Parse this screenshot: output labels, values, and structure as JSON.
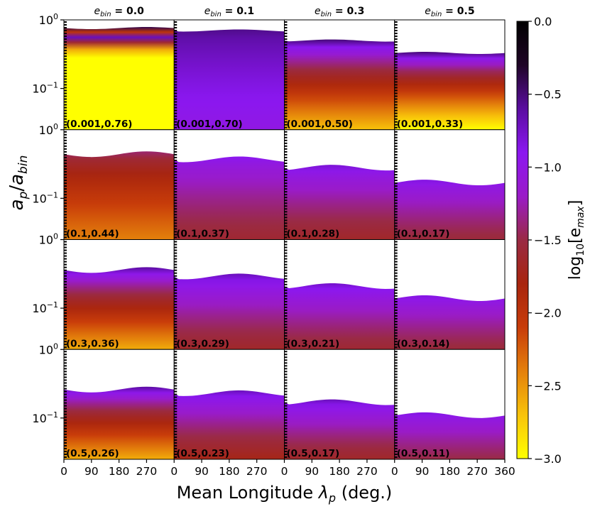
{
  "chart_data": {
    "type": "heatmap",
    "title": "",
    "xlabel": "Mean Longitude λ_p (deg.)",
    "ylabel": "a_p/a_bin",
    "colorbar_label": "log10[e_max]",
    "colorbar_range": [
      -3.0,
      0.0
    ],
    "colorbar_ticks": [
      "0.0",
      "−0.5",
      "−1.0",
      "−1.5",
      "−2.0",
      "−2.5",
      "−3.0"
    ],
    "colorbar_tick_values": [
      0.0,
      -0.5,
      -1.0,
      -1.5,
      -2.0,
      -2.5,
      -3.0
    ],
    "colormap": [
      "#ffff00",
      "#f8c30a",
      "#e4800b",
      "#c83c0a",
      "#a8250e",
      "#9a2a44",
      "#9a1bc8",
      "#8b17f0",
      "#5a0da0",
      "#1f0526",
      "#000000"
    ],
    "x_ticks": [
      "0",
      "90",
      "180",
      "270",
      "360"
    ],
    "x_tick_values": [
      0,
      90,
      180,
      270,
      360
    ],
    "xlim": [
      0,
      360
    ],
    "y_ticks": [
      "10^0",
      "10^-1"
    ],
    "y_tick_values": [
      1.0,
      0.1
    ],
    "ylim_log": [
      0.025,
      1.0
    ],
    "column_titles": [
      "e_bin = 0.0",
      "e_bin = 0.1",
      "e_bin = 0.3",
      "e_bin = 0.5"
    ],
    "column_values": [
      0.0,
      0.1,
      0.3,
      0.5
    ],
    "row_values": [
      0.001,
      0.1,
      0.3,
      0.5
    ],
    "panels": [
      [
        {
          "label": "(0.001,0.76)",
          "a_crit": 0.76,
          "mode": "pattern-yellow"
        },
        {
          "label": "(0.001,0.70)",
          "a_crit": 0.7,
          "mode": "gradient",
          "min": -1.0,
          "max": -0.55
        },
        {
          "label": "(0.001,0.50)",
          "a_crit": 0.5,
          "mode": "gradient",
          "min": -2.7,
          "max": -0.5
        },
        {
          "label": "(0.001,0.33)",
          "a_crit": 0.33,
          "mode": "gradient",
          "min": -3.0,
          "max": -0.5
        }
      ],
      [
        {
          "label": "(0.1,0.44)",
          "a_crit": 0.44,
          "mode": "gradient",
          "min": -2.4,
          "max": -1.4
        },
        {
          "label": "(0.1,0.37)",
          "a_crit": 0.37,
          "mode": "gradient",
          "min": -1.6,
          "max": -0.9
        },
        {
          "label": "(0.1,0.28)",
          "a_crit": 0.28,
          "mode": "gradient",
          "min": -1.65,
          "max": -0.8
        },
        {
          "label": "(0.1,0.17)",
          "a_crit": 0.17,
          "mode": "gradient",
          "min": -1.55,
          "max": -0.85
        }
      ],
      [
        {
          "label": "(0.3,0.36)",
          "a_crit": 0.36,
          "mode": "gradient",
          "min": -2.6,
          "max": -0.6
        },
        {
          "label": "(0.3,0.29)",
          "a_crit": 0.29,
          "mode": "gradient",
          "min": -1.65,
          "max": -0.7
        },
        {
          "label": "(0.3,0.21)",
          "a_crit": 0.21,
          "mode": "gradient",
          "min": -1.6,
          "max": -0.75
        },
        {
          "label": "(0.3,0.14)",
          "a_crit": 0.14,
          "mode": "gradient",
          "min": -1.55,
          "max": -0.85
        }
      ],
      [
        {
          "label": "(0.5,0.26)",
          "a_crit": 0.26,
          "mode": "gradient",
          "min": -2.6,
          "max": -0.6
        },
        {
          "label": "(0.5,0.23)",
          "a_crit": 0.23,
          "mode": "gradient",
          "min": -1.75,
          "max": -0.7
        },
        {
          "label": "(0.5,0.17)",
          "a_crit": 0.17,
          "mode": "gradient",
          "min": -1.65,
          "max": -0.7
        },
        {
          "label": "(0.5,0.11)",
          "a_crit": 0.11,
          "mode": "gradient",
          "min": -1.5,
          "max": -0.85
        }
      ]
    ]
  }
}
